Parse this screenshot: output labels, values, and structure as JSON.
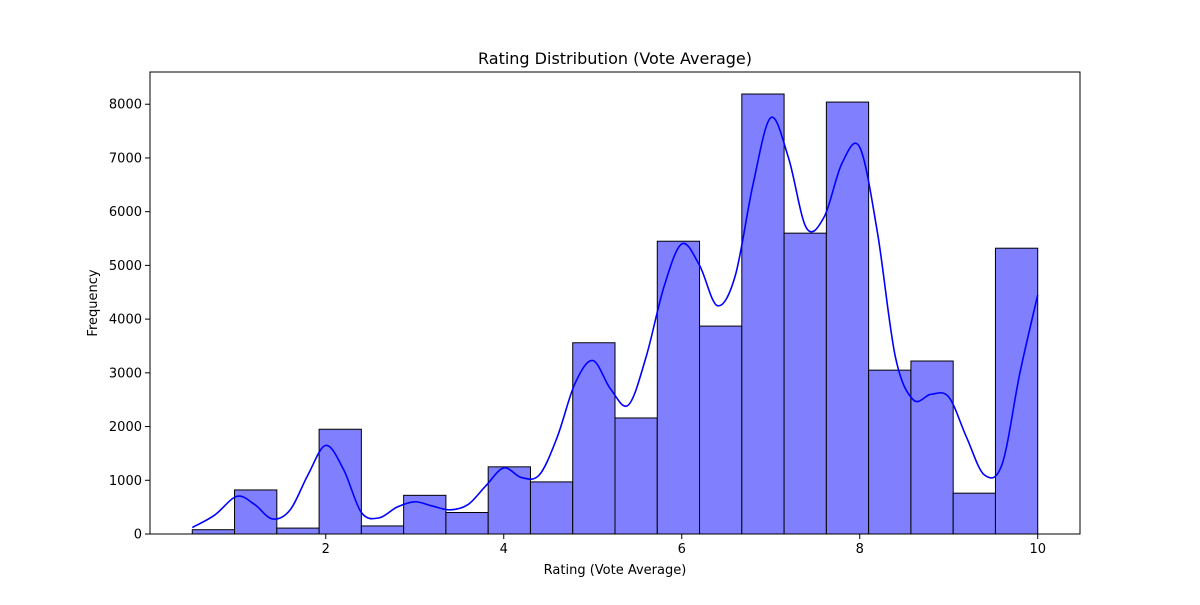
{
  "chart_data": {
    "type": "bar",
    "title": "Rating Distribution (Vote Average)",
    "xlabel": "Rating (Vote Average)",
    "ylabel": "Frequency",
    "xlim": [
      0.025,
      10.475
    ],
    "ylim": [
      0,
      8600
    ],
    "xticks": [
      2,
      4,
      6,
      8,
      10
    ],
    "yticks": [
      0,
      1000,
      2000,
      3000,
      4000,
      5000,
      6000,
      7000,
      8000
    ],
    "bins": [
      {
        "x0": 0.5,
        "x1": 0.975,
        "value": 80
      },
      {
        "x0": 0.975,
        "x1": 1.45,
        "value": 820
      },
      {
        "x0": 1.45,
        "x1": 1.925,
        "value": 110
      },
      {
        "x0": 1.925,
        "x1": 2.4,
        "value": 1950
      },
      {
        "x0": 2.4,
        "x1": 2.875,
        "value": 150
      },
      {
        "x0": 2.875,
        "x1": 3.35,
        "value": 720
      },
      {
        "x0": 3.35,
        "x1": 3.825,
        "value": 400
      },
      {
        "x0": 3.825,
        "x1": 4.3,
        "value": 1250
      },
      {
        "x0": 4.3,
        "x1": 4.775,
        "value": 970
      },
      {
        "x0": 4.775,
        "x1": 5.25,
        "value": 3560
      },
      {
        "x0": 5.25,
        "x1": 5.725,
        "value": 2160
      },
      {
        "x0": 5.725,
        "x1": 6.2,
        "value": 5450
      },
      {
        "x0": 6.2,
        "x1": 6.675,
        "value": 3870
      },
      {
        "x0": 6.675,
        "x1": 7.15,
        "value": 8190
      },
      {
        "x0": 7.15,
        "x1": 7.625,
        "value": 5600
      },
      {
        "x0": 7.625,
        "x1": 8.1,
        "value": 8040
      },
      {
        "x0": 8.1,
        "x1": 8.575,
        "value": 3050
      },
      {
        "x0": 8.575,
        "x1": 9.05,
        "value": 3220
      },
      {
        "x0": 9.05,
        "x1": 9.525,
        "value": 760
      },
      {
        "x0": 9.525,
        "x1": 10.0,
        "value": 5320
      }
    ],
    "kde": {
      "x": [
        0.5,
        0.75,
        1.0,
        1.2,
        1.4,
        1.6,
        1.8,
        2.0,
        2.2,
        2.4,
        2.6,
        2.8,
        3.0,
        3.2,
        3.4,
        3.6,
        3.8,
        4.0,
        4.2,
        4.4,
        4.6,
        4.8,
        5.0,
        5.2,
        5.4,
        5.6,
        5.8,
        6.0,
        6.2,
        6.4,
        6.6,
        6.8,
        7.0,
        7.2,
        7.4,
        7.6,
        7.8,
        8.0,
        8.2,
        8.4,
        8.6,
        8.8,
        9.0,
        9.2,
        9.4,
        9.6,
        9.8,
        10.0
      ],
      "y": [
        120,
        350,
        700,
        550,
        280,
        450,
        1100,
        1650,
        1200,
        400,
        300,
        500,
        600,
        520,
        450,
        550,
        900,
        1230,
        1050,
        1100,
        1800,
        2800,
        3230,
        2700,
        2400,
        3300,
        4600,
        5400,
        5000,
        4250,
        4800,
        6500,
        7750,
        7000,
        5700,
        5900,
        6900,
        7200,
        5600,
        3300,
        2500,
        2600,
        2550,
        1800,
        1100,
        1300,
        3000,
        4450
      ]
    },
    "colors": {
      "bar_fill": "#8080ff",
      "bar_edge": "#000000",
      "kde_line": "#0000ff"
    },
    "grid": false,
    "legend": "none"
  }
}
